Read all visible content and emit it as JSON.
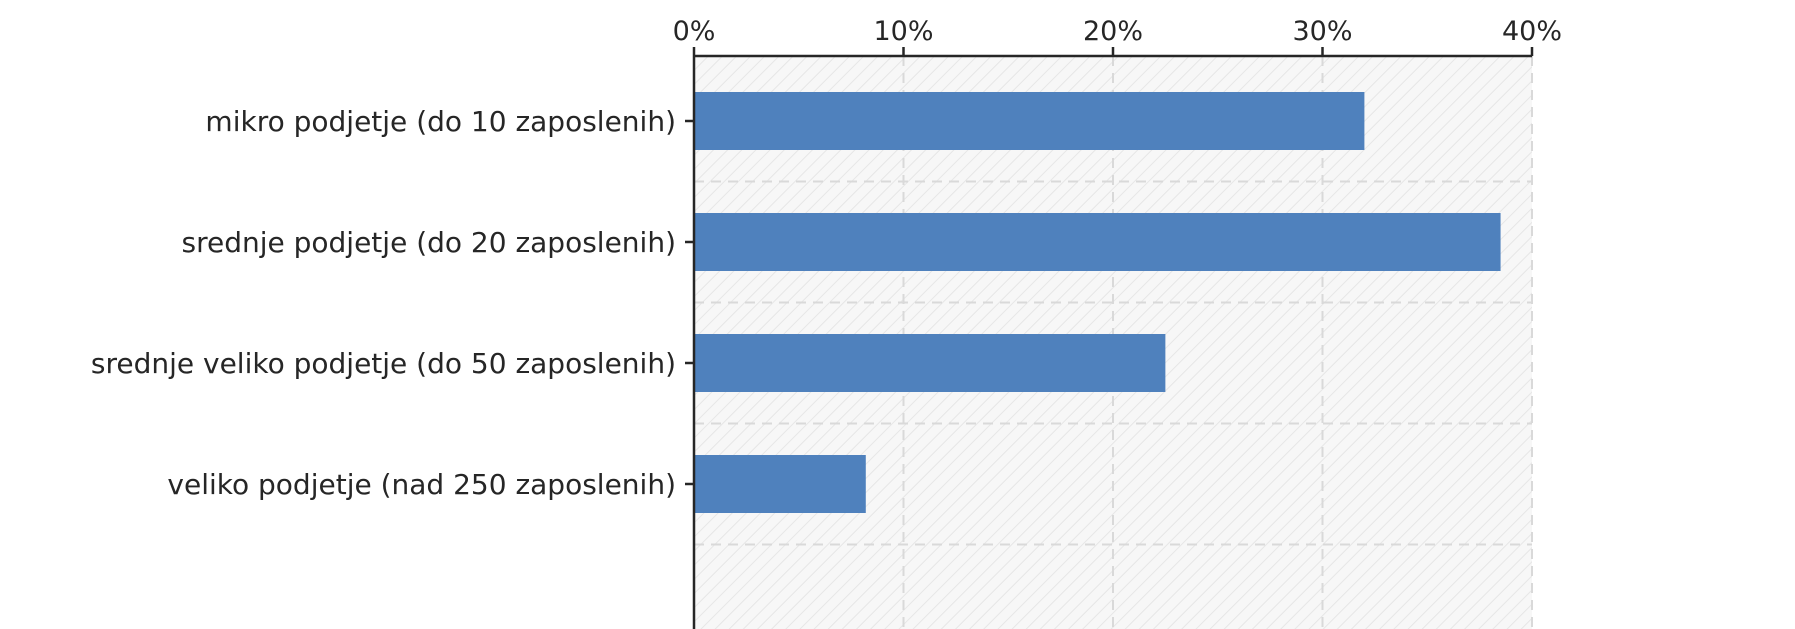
{
  "chart_data": {
    "type": "bar",
    "orientation": "horizontal",
    "categories": [
      "mikro podjetje (do 10 zaposlenih)",
      "srednje podjetje (do 20 zaposlenih)",
      "srednje veliko podjetje (do 50 zaposlenih)",
      "veliko podjetje (nad 250 zaposlenih)"
    ],
    "values": [
      32,
      38.5,
      22.5,
      8.2
    ],
    "xlim": [
      0,
      40
    ],
    "xticks": [
      "0%",
      "10%",
      "20%",
      "30%",
      "40%"
    ],
    "axis_position": "top",
    "grid": true,
    "bar_color": "#4f81bd",
    "plot_background": "hatched-light-gray"
  }
}
